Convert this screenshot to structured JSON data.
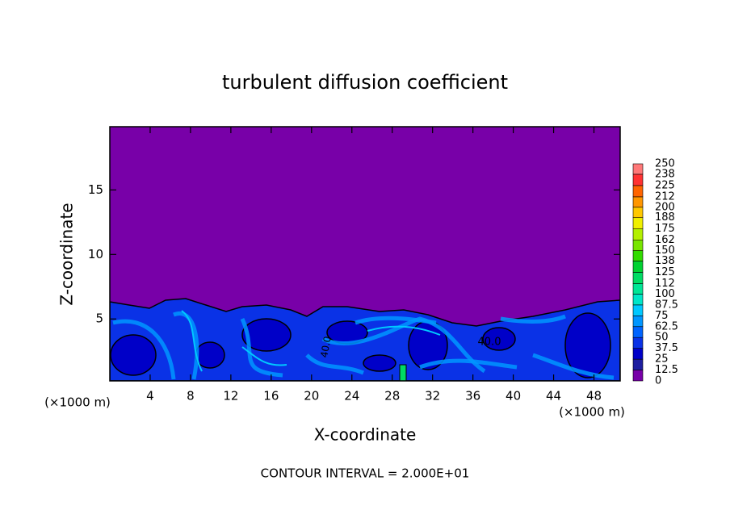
{
  "chart_data": {
    "type": "contour",
    "title": "turbulent diffusion coefficient",
    "x_label": "X-coordinate",
    "y_label": "Z-coordinate",
    "x_unit": "(×1000 m)",
    "footer": "CONTOUR INTERVAL = 2.000E+01",
    "contour_labels": [
      "40.0",
      "40.0"
    ],
    "xlim": [
      0,
      50.6
    ],
    "ylim": [
      0.2,
      19.9
    ],
    "xticks": [
      4,
      8,
      12,
      16,
      20,
      24,
      28,
      32,
      36,
      40,
      44,
      48
    ],
    "yticks": [
      5,
      10,
      15
    ],
    "colorbar": {
      "levels": [
        0,
        12.5,
        25,
        37.5,
        50,
        62.5,
        75,
        87.5,
        100,
        112,
        125,
        138,
        150,
        162,
        175,
        188,
        200,
        212,
        225,
        238,
        250
      ],
      "colors": [
        "#7800a8",
        "#1e1ea0",
        "#0000c8",
        "#0a32e6",
        "#0064ff",
        "#0096ff",
        "#00c8ff",
        "#00e6c8",
        "#00e696",
        "#00dc64",
        "#00d232",
        "#32dc00",
        "#78e600",
        "#b4f000",
        "#f0f000",
        "#ffc800",
        "#ff9600",
        "#ff6400",
        "#ff3232",
        "#ff7878"
      ]
    }
  }
}
